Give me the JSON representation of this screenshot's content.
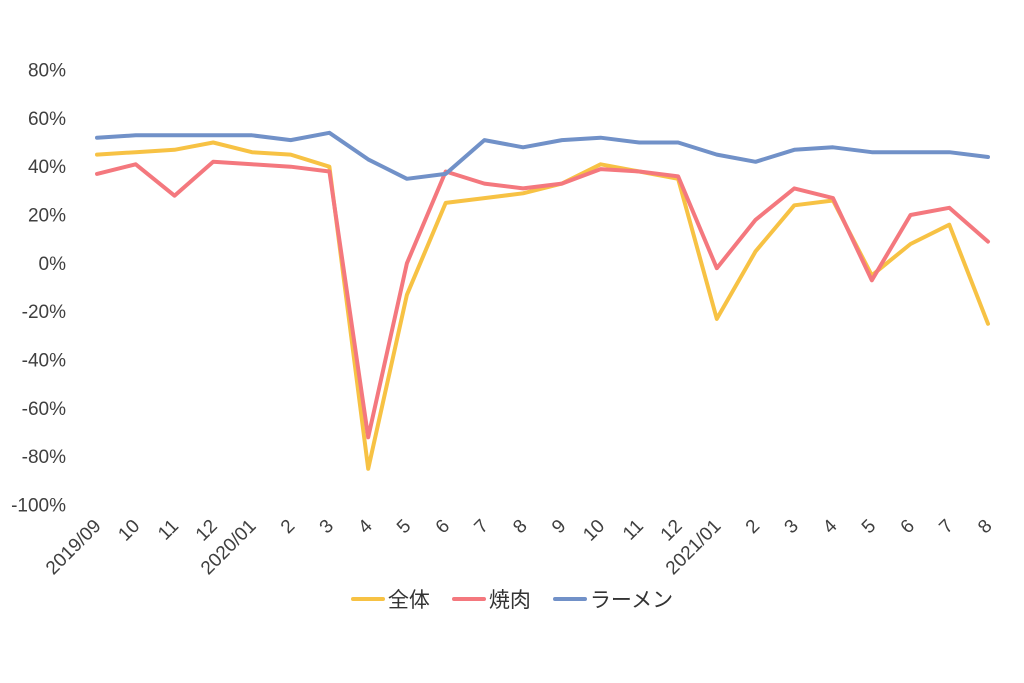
{
  "chart_data": {
    "type": "line",
    "title": "",
    "xlabel": "",
    "ylabel": "",
    "ylim": [
      -100,
      80
    ],
    "ytick_step": 20,
    "ytick_format": "percent",
    "grid": false,
    "legend_position": "bottom",
    "x_labels": [
      "2019/09",
      "10",
      "11",
      "12",
      "2020/01",
      "2",
      "3",
      "4",
      "5",
      "6",
      "7",
      "8",
      "9",
      "10",
      "11",
      "12",
      "2021/01",
      "2",
      "3",
      "4",
      "5",
      "6",
      "7",
      "8"
    ],
    "series": [
      {
        "id": "overall",
        "name": "全体",
        "color": "#F7C244",
        "values": [
          45,
          46,
          47,
          50,
          46,
          45,
          40,
          -85,
          -13,
          25,
          27,
          29,
          33,
          41,
          38,
          35,
          -23,
          5,
          24,
          26,
          -5,
          8,
          16,
          -25
        ]
      },
      {
        "id": "yakiniku",
        "name": "焼肉",
        "color": "#F4787E",
        "values": [
          37,
          41,
          28,
          42,
          41,
          40,
          38,
          -72,
          0,
          38,
          33,
          31,
          33,
          39,
          38,
          36,
          -2,
          18,
          31,
          27,
          -7,
          20,
          23,
          9
        ]
      },
      {
        "id": "ramen",
        "name": "ラーメン",
        "color": "#7191C8",
        "values": [
          52,
          53,
          53,
          53,
          53,
          51,
          54,
          43,
          35,
          37,
          51,
          48,
          51,
          52,
          50,
          50,
          45,
          42,
          47,
          48,
          46,
          46,
          46,
          44
        ]
      }
    ],
    "colors": {
      "axis_text": "#3f3f3f",
      "background": "#ffffff"
    }
  }
}
